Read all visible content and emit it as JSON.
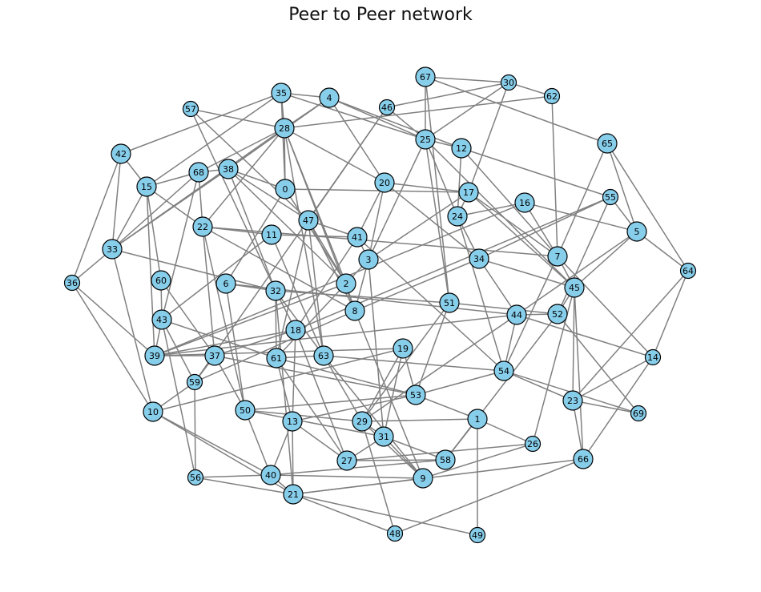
{
  "title": "Peer to Peer network",
  "colors": {
    "node_fill": "#87ceeb",
    "node_stroke": "#000000",
    "edge": "#808080"
  },
  "nodes": [
    "0",
    "1",
    "2",
    "3",
    "4",
    "5",
    "6",
    "7",
    "8",
    "9",
    "10",
    "11",
    "12",
    "13",
    "14",
    "15",
    "16",
    "17",
    "18",
    "19",
    "20",
    "21",
    "22",
    "23",
    "24",
    "25",
    "26",
    "27",
    "28",
    "29",
    "30",
    "31",
    "32",
    "33",
    "34",
    "35",
    "36",
    "37",
    "38",
    "39",
    "40",
    "41",
    "42",
    "43",
    "44",
    "45",
    "46",
    "47",
    "48",
    "49",
    "50",
    "51",
    "52",
    "53",
    "54",
    "55",
    "56",
    "57",
    "58",
    "59",
    "60",
    "61",
    "62",
    "63",
    "64",
    "65",
    "66",
    "67",
    "68",
    "69"
  ],
  "edges": [
    [
      "42",
      "15"
    ],
    [
      "42",
      "33"
    ],
    [
      "42",
      "36"
    ],
    [
      "42",
      "35"
    ],
    [
      "15",
      "33"
    ],
    [
      "15",
      "68"
    ],
    [
      "15",
      "22"
    ],
    [
      "15",
      "60"
    ],
    [
      "15",
      "39"
    ],
    [
      "15",
      "35"
    ],
    [
      "33",
      "36"
    ],
    [
      "33",
      "68"
    ],
    [
      "33",
      "38"
    ],
    [
      "33",
      "10"
    ],
    [
      "33",
      "28"
    ],
    [
      "33",
      "32"
    ],
    [
      "36",
      "10"
    ],
    [
      "36",
      "39"
    ],
    [
      "57",
      "47"
    ],
    [
      "57",
      "28"
    ],
    [
      "57",
      "32"
    ],
    [
      "35",
      "4"
    ],
    [
      "35",
      "25"
    ],
    [
      "35",
      "28"
    ],
    [
      "35",
      "0"
    ],
    [
      "4",
      "28"
    ],
    [
      "4",
      "20"
    ],
    [
      "4",
      "38"
    ],
    [
      "4",
      "25"
    ],
    [
      "4",
      "12"
    ],
    [
      "28",
      "0"
    ],
    [
      "28",
      "2"
    ],
    [
      "28",
      "63"
    ],
    [
      "28",
      "8"
    ],
    [
      "28",
      "22"
    ],
    [
      "28",
      "20"
    ],
    [
      "28",
      "68"
    ],
    [
      "68",
      "38"
    ],
    [
      "68",
      "22"
    ],
    [
      "68",
      "43"
    ],
    [
      "38",
      "0"
    ],
    [
      "38",
      "47"
    ],
    [
      "38",
      "32"
    ],
    [
      "38",
      "2"
    ],
    [
      "0",
      "17"
    ],
    [
      "0",
      "6"
    ],
    [
      "0",
      "2"
    ],
    [
      "22",
      "11"
    ],
    [
      "22",
      "37"
    ],
    [
      "22",
      "50"
    ],
    [
      "22",
      "7"
    ],
    [
      "22",
      "8"
    ],
    [
      "11",
      "43"
    ],
    [
      "11",
      "63"
    ],
    [
      "11",
      "41"
    ],
    [
      "47",
      "41"
    ],
    [
      "47",
      "8"
    ],
    [
      "47",
      "63"
    ],
    [
      "47",
      "61"
    ],
    [
      "47",
      "2"
    ],
    [
      "46",
      "47"
    ],
    [
      "46",
      "30"
    ],
    [
      "46",
      "25"
    ],
    [
      "46",
      "59"
    ],
    [
      "67",
      "30"
    ],
    [
      "67",
      "65"
    ],
    [
      "67",
      "51"
    ],
    [
      "67",
      "25"
    ],
    [
      "30",
      "62"
    ],
    [
      "30",
      "17"
    ],
    [
      "30",
      "25"
    ],
    [
      "62",
      "7"
    ],
    [
      "62",
      "28"
    ],
    [
      "25",
      "12"
    ],
    [
      "25",
      "24"
    ],
    [
      "25",
      "51"
    ],
    [
      "25",
      "45"
    ],
    [
      "25",
      "3"
    ],
    [
      "12",
      "24"
    ],
    [
      "12",
      "55"
    ],
    [
      "12",
      "7"
    ],
    [
      "20",
      "17"
    ],
    [
      "20",
      "41"
    ],
    [
      "20",
      "34"
    ],
    [
      "20",
      "3"
    ],
    [
      "17",
      "24"
    ],
    [
      "17",
      "45"
    ],
    [
      "17",
      "7"
    ],
    [
      "17",
      "3"
    ],
    [
      "16",
      "24"
    ],
    [
      "16",
      "5"
    ],
    [
      "16",
      "7"
    ],
    [
      "16",
      "39"
    ],
    [
      "24",
      "54"
    ],
    [
      "24",
      "34"
    ],
    [
      "55",
      "5"
    ],
    [
      "55",
      "34"
    ],
    [
      "55",
      "18"
    ],
    [
      "55",
      "52"
    ],
    [
      "65",
      "5"
    ],
    [
      "65",
      "64"
    ],
    [
      "65",
      "7"
    ],
    [
      "5",
      "45"
    ],
    [
      "5",
      "44"
    ],
    [
      "5",
      "64"
    ],
    [
      "64",
      "23"
    ],
    [
      "64",
      "14"
    ],
    [
      "41",
      "3"
    ],
    [
      "41",
      "18"
    ],
    [
      "41",
      "54"
    ],
    [
      "3",
      "61"
    ],
    [
      "3",
      "8"
    ],
    [
      "3",
      "31"
    ],
    [
      "34",
      "44"
    ],
    [
      "34",
      "45"
    ],
    [
      "34",
      "8"
    ],
    [
      "7",
      "45"
    ],
    [
      "7",
      "54"
    ],
    [
      "7",
      "14"
    ],
    [
      "45",
      "52"
    ],
    [
      "45",
      "23"
    ],
    [
      "45",
      "26"
    ],
    [
      "45",
      "66"
    ],
    [
      "6",
      "32"
    ],
    [
      "6",
      "50"
    ],
    [
      "6",
      "44"
    ],
    [
      "60",
      "43"
    ],
    [
      "60",
      "37"
    ],
    [
      "32",
      "61"
    ],
    [
      "32",
      "18"
    ],
    [
      "32",
      "21"
    ],
    [
      "32",
      "63"
    ],
    [
      "32",
      "51"
    ],
    [
      "2",
      "8"
    ],
    [
      "2",
      "39"
    ],
    [
      "8",
      "9"
    ],
    [
      "8",
      "59"
    ],
    [
      "51",
      "52"
    ],
    [
      "51",
      "29"
    ],
    [
      "51",
      "53"
    ],
    [
      "44",
      "52"
    ],
    [
      "44",
      "29"
    ],
    [
      "44",
      "39"
    ],
    [
      "44",
      "54"
    ],
    [
      "44",
      "14"
    ],
    [
      "52",
      "69"
    ],
    [
      "52",
      "58"
    ],
    [
      "43",
      "39"
    ],
    [
      "43",
      "59"
    ],
    [
      "43",
      "56"
    ],
    [
      "43",
      "61"
    ],
    [
      "18",
      "37"
    ],
    [
      "18",
      "13"
    ],
    [
      "18",
      "27"
    ],
    [
      "39",
      "37"
    ],
    [
      "39",
      "19"
    ],
    [
      "39",
      "18"
    ],
    [
      "37",
      "59"
    ],
    [
      "37",
      "50"
    ],
    [
      "37",
      "53"
    ],
    [
      "59",
      "56"
    ],
    [
      "59",
      "10"
    ],
    [
      "61",
      "63"
    ],
    [
      "61",
      "13"
    ],
    [
      "61",
      "53"
    ],
    [
      "61",
      "27"
    ],
    [
      "63",
      "29"
    ],
    [
      "63",
      "9"
    ],
    [
      "63",
      "54"
    ],
    [
      "19",
      "10"
    ],
    [
      "19",
      "29"
    ],
    [
      "19",
      "31"
    ],
    [
      "19",
      "53"
    ],
    [
      "54",
      "53"
    ],
    [
      "54",
      "23"
    ],
    [
      "54",
      "69"
    ],
    [
      "53",
      "1"
    ],
    [
      "53",
      "13"
    ],
    [
      "53",
      "50"
    ],
    [
      "14",
      "23"
    ],
    [
      "14",
      "66"
    ],
    [
      "23",
      "69"
    ],
    [
      "23",
      "66"
    ],
    [
      "10",
      "40"
    ],
    [
      "10",
      "21"
    ],
    [
      "50",
      "40"
    ],
    [
      "50",
      "29"
    ],
    [
      "50",
      "31"
    ],
    [
      "13",
      "21"
    ],
    [
      "13",
      "27"
    ],
    [
      "13",
      "40"
    ],
    [
      "29",
      "1"
    ],
    [
      "29",
      "48"
    ],
    [
      "29",
      "31"
    ],
    [
      "31",
      "9"
    ],
    [
      "31",
      "27"
    ],
    [
      "31",
      "58"
    ],
    [
      "1",
      "49"
    ],
    [
      "1",
      "58"
    ],
    [
      "1",
      "26"
    ],
    [
      "26",
      "27"
    ],
    [
      "26",
      "9"
    ],
    [
      "58",
      "40"
    ],
    [
      "58",
      "27"
    ],
    [
      "66",
      "21"
    ],
    [
      "66",
      "48"
    ],
    [
      "40",
      "21"
    ],
    [
      "40",
      "9"
    ],
    [
      "40",
      "56"
    ],
    [
      "56",
      "21"
    ],
    [
      "21",
      "48"
    ],
    [
      "21",
      "49"
    ],
    [
      "21",
      "9"
    ],
    [
      "9",
      "29"
    ]
  ]
}
